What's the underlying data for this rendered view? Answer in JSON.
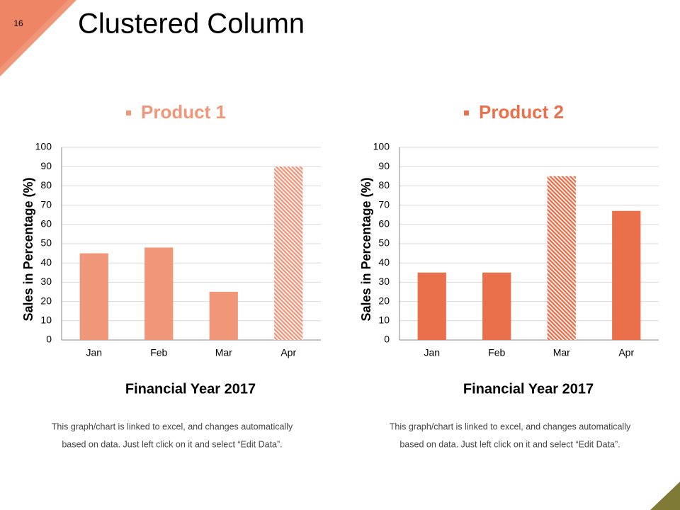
{
  "slide": {
    "number": "16",
    "title": "Clustered Column"
  },
  "chart_data": [
    {
      "type": "bar",
      "categories": [
        "Jan",
        "Feb",
        "Mar",
        "Apr"
      ],
      "series": [
        {
          "name": "Product 1",
          "color": "#f0977a",
          "values": [
            45,
            48,
            25,
            90
          ],
          "hatched": [
            false,
            false,
            false,
            true
          ]
        }
      ],
      "ylabel": "Sales in Percentage (%)",
      "xlabel": "Financial Year 2017",
      "ylim": [
        0,
        100
      ],
      "yticks": [
        0,
        10,
        20,
        30,
        40,
        50,
        60,
        70,
        80,
        90,
        100
      ],
      "grid": true,
      "legend": "top",
      "note_lines": [
        "This graph/chart is linked to excel, and changes automatically",
        "based on data. Just left click on it and select “Edit Data”."
      ]
    },
    {
      "type": "bar",
      "categories": [
        "Jan",
        "Feb",
        "Mar",
        "Apr"
      ],
      "series": [
        {
          "name": "Product 2",
          "color": "#e9704a",
          "values": [
            35,
            35,
            85,
            67
          ],
          "hatched": [
            false,
            false,
            true,
            false
          ]
        }
      ],
      "ylabel": "Sales in Percentage (%)",
      "xlabel": "Financial Year 2017",
      "ylim": [
        0,
        100
      ],
      "yticks": [
        0,
        10,
        20,
        30,
        40,
        50,
        60,
        70,
        80,
        90,
        100
      ],
      "grid": true,
      "legend": "top",
      "note_lines": [
        "This graph/chart is linked to excel, and changes automatically",
        "based on data. Just left click on it and select “Edit Data”."
      ]
    }
  ]
}
